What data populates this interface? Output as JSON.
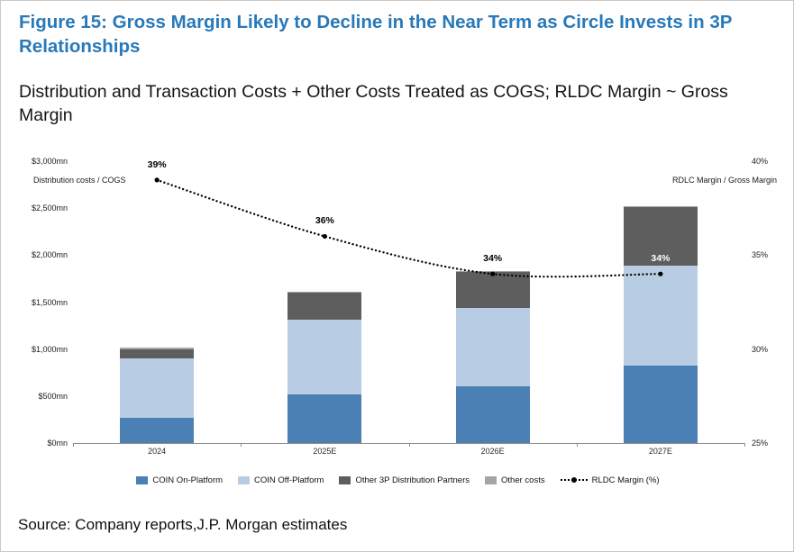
{
  "figure": {
    "title": "Figure 15: Gross Margin Likely to Decline in the Near Term as Circle Invests in 3P Relationships",
    "subtitle": "Distribution and Transaction Costs + Other Costs Treated as COGS; RLDC Margin ~ Gross Margin",
    "source": "Source: Company reports,J.P. Morgan estimates"
  },
  "chart_data": {
    "type": "bar",
    "subtype": "stacked-column-with-dotted-line",
    "categories": [
      "2024",
      "2025E",
      "2026E",
      "2027E"
    ],
    "series": [
      {
        "name": "COIN On-Platform",
        "color": "#4b80b4",
        "values": [
          270,
          520,
          600,
          820
        ]
      },
      {
        "name": "COIN Off-Platform",
        "color": "#b8cde3",
        "values": [
          630,
          790,
          840,
          1070
        ]
      },
      {
        "name": "Other 3P Distribution Partners",
        "color": "#5e5e5e",
        "values": [
          100,
          290,
          380,
          620
        ]
      },
      {
        "name": "Other costs",
        "color": "#a5a5a5",
        "values": [
          15,
          15,
          15,
          15
        ]
      }
    ],
    "line_series": {
      "name": "RLDC Margin (%)",
      "values": [
        39,
        36,
        34,
        34
      ],
      "labels": [
        "39%",
        "36%",
        "34%",
        "34%"
      ],
      "label_colors": [
        "#000000",
        "#000000",
        "#000000",
        "#ffffff"
      ],
      "color": "#000000",
      "style": "dotted"
    },
    "left_axis": {
      "label": "Distribution costs / COGS",
      "ticks": [
        "$0mn",
        "$500mn",
        "$1,000mn",
        "$1,500mn",
        "$2,000mn",
        "$2,500mn",
        "$3,000mn"
      ],
      "min": 0,
      "max": 3000
    },
    "right_axis": {
      "label": "RDLC Margin / Gross Margin",
      "ticks": [
        "25%",
        "30%",
        "35%",
        "40%"
      ],
      "min": 25,
      "max": 40
    },
    "legend": [
      {
        "label": "COIN On-Platform",
        "swatch": "#4b80b4",
        "type": "box"
      },
      {
        "label": "COIN Off-Platform",
        "swatch": "#b8cde3",
        "type": "box"
      },
      {
        "label": "Other 3P Distribution Partners",
        "swatch": "#5e5e5e",
        "type": "box"
      },
      {
        "label": "Other costs",
        "swatch": "#a5a5a5",
        "type": "box"
      },
      {
        "label": "RLDC Margin (%)",
        "swatch": "#000000",
        "type": "dotted-line"
      }
    ],
    "grid": false,
    "legend_position": "bottom"
  }
}
